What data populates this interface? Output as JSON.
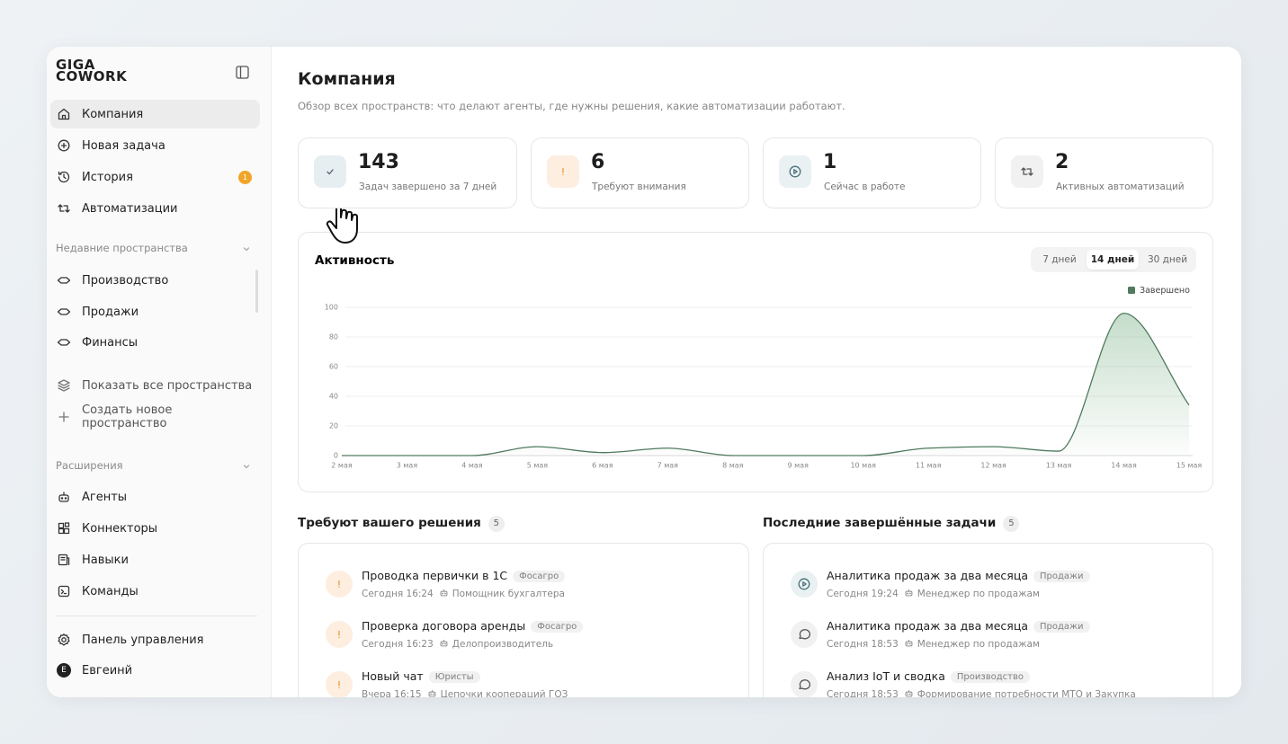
{
  "sidebar": {
    "logo": [
      "GIGA",
      "COWORK"
    ],
    "nav": [
      {
        "label": "Компания"
      },
      {
        "label": "Новая задача"
      },
      {
        "label": "История",
        "badge": 1
      },
      {
        "label": "Автоматизации"
      }
    ],
    "recent_title": "Недавние пространства",
    "spaces": [
      "Производство",
      "Продажи",
      "Финансы"
    ],
    "space_actions": [
      "Показать все пространства",
      "Создать новое пространство"
    ],
    "extensions_title": "Расширения",
    "extensions": [
      "Агенты",
      "Коннекторы",
      "Навыки",
      "Команды"
    ],
    "settings": "Панель управления",
    "user": {
      "initial": "Е",
      "name": "Евгеинй"
    }
  },
  "header": {
    "title": "Компания",
    "subtitle": "Обзор всех пространств: что делают агенты, где нужны решения, какие автоматизации работают."
  },
  "stats": [
    {
      "value": 143,
      "label": "Задач завершено за 7 дней"
    },
    {
      "value": 6,
      "label": "Требуют внимания"
    },
    {
      "value": 1,
      "label": "Сейчас в работе"
    },
    {
      "value": 2,
      "label": "Активных автоматизаций"
    }
  ],
  "activity_tabs": [
    "7 дней",
    "14 дней",
    "30 дней"
  ],
  "chart_data": {
    "type": "line",
    "title": "Активность",
    "categories": [
      "2 мая",
      "3 мая",
      "4 мая",
      "5 мая",
      "6 мая",
      "7 мая",
      "8 мая",
      "9 мая",
      "10 мая",
      "11 мая",
      "12 мая",
      "13 мая",
      "14 мая",
      "15 мая"
    ],
    "series": [
      {
        "name": "Завершено",
        "color": "#4f7a5e",
        "values": [
          0,
          0,
          0,
          6,
          2,
          5,
          0,
          0,
          0,
          5,
          6,
          3,
          96,
          34
        ]
      }
    ],
    "ylim": [
      0,
      100
    ],
    "yticks": [
      0,
      20,
      40,
      60,
      80,
      100
    ],
    "grid": true
  },
  "decisions": {
    "title": "Требуют вашего решения",
    "count": 5,
    "items": [
      {
        "title": "Проводка первички в 1С",
        "tag": "Фосагро",
        "time": "Сегодня 16:24",
        "agent": "Помощник бухгалтера"
      },
      {
        "title": "Проверка договора аренды",
        "tag": "Фосагро",
        "time": "Сегодня 16:23",
        "agent": "Делопроизводитель"
      },
      {
        "title": "Новый чат",
        "tag": "Юристы",
        "time": "Вчера 16:15",
        "agent": "Цепочки коопераций ГОЗ"
      }
    ]
  },
  "completed": {
    "title": "Последние завершённые задачи",
    "count": 5,
    "items": [
      {
        "title": "Аналитика продаж за два месяца",
        "tag": "Продажи",
        "time": "Сегодня 19:24",
        "agent": "Менеджер по продажам"
      },
      {
        "title": "Аналитика продаж за два месяца",
        "tag": "Продажи",
        "time": "Сегодня 18:53",
        "agent": "Менеджер по продажам"
      },
      {
        "title": "Анализ IoT и сводка",
        "tag": "Производство",
        "time": "Сегодня 18:53",
        "agent": "Формирование потребности МТО и Закупка"
      }
    ]
  }
}
